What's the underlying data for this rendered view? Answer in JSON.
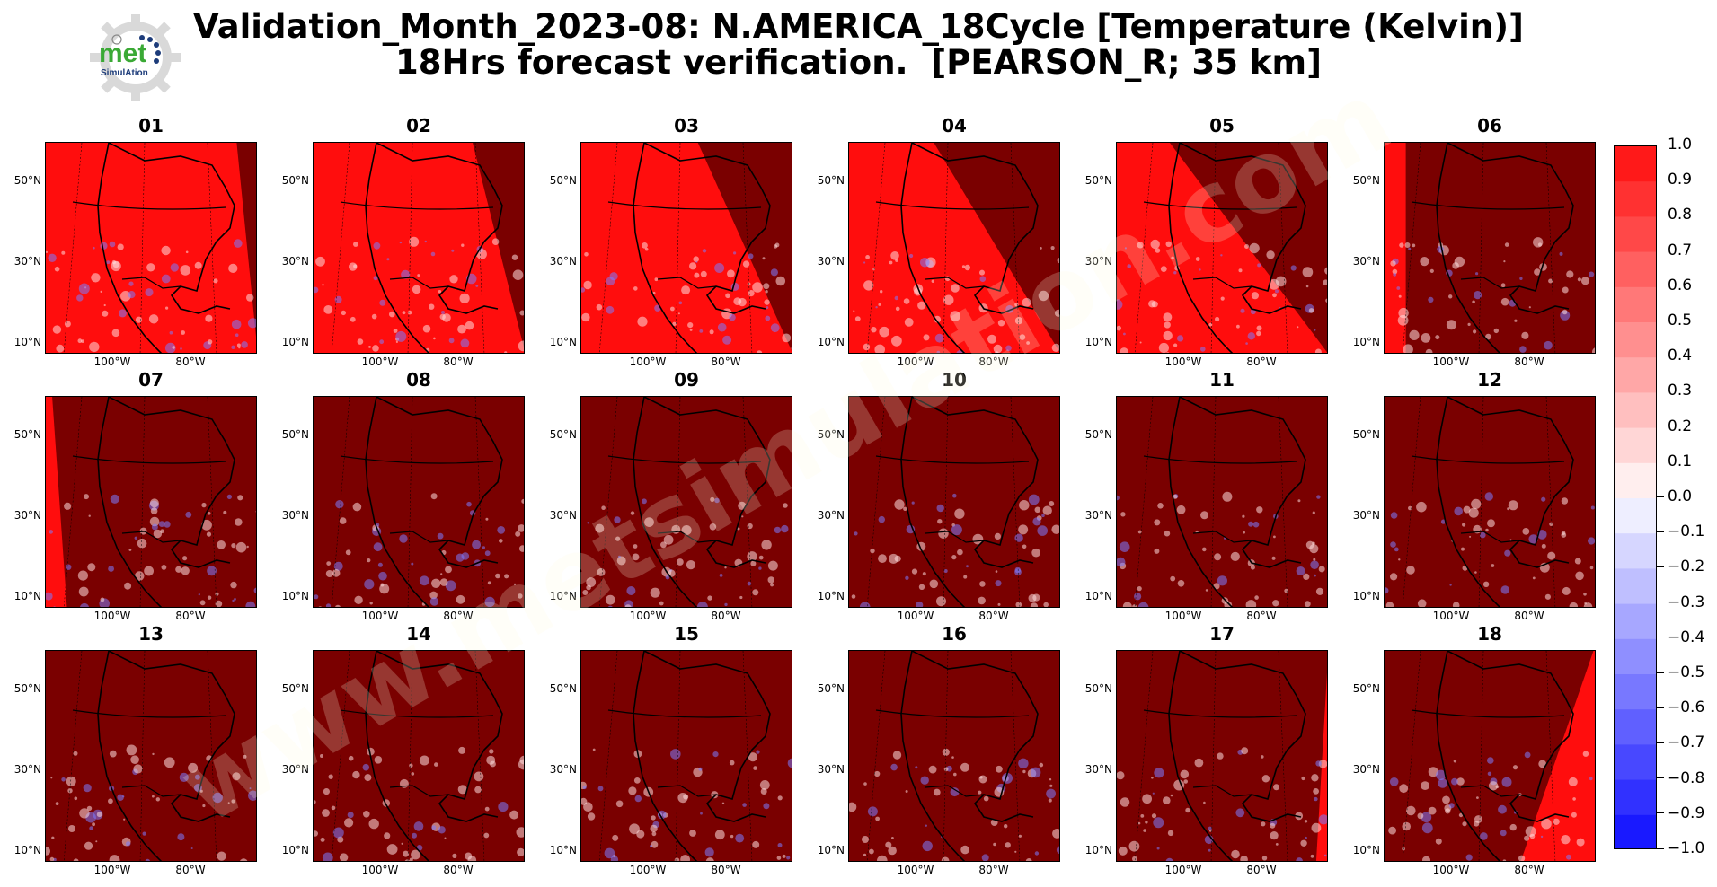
{
  "title": {
    "line1": "Validation_Month_2023-08: N.AMERICA_18Cycle [Temperature (Kelvin)]",
    "line2": "18Hrs forecast verification.  [PEARSON_R; 35 km]"
  },
  "logo": {
    "text": "met",
    "subtext": "SimulAtion"
  },
  "watermark": {
    "text": "www.metsimulation.com"
  },
  "axis": {
    "lat_labels": [
      "50°N",
      "30°N",
      "10°N"
    ],
    "lon_labels": [
      "100°W",
      "80°W"
    ]
  },
  "panels": [
    {
      "label": "01",
      "dark_side": "right",
      "sweep_fraction": 0.1
    },
    {
      "label": "02",
      "dark_side": "right",
      "sweep_fraction": 0.25
    },
    {
      "label": "03",
      "dark_side": "right",
      "sweep_fraction": 0.45
    },
    {
      "label": "04",
      "dark_side": "right",
      "sweep_fraction": 0.6
    },
    {
      "label": "05",
      "dark_side": "right",
      "sweep_fraction": 0.75
    },
    {
      "label": "06",
      "dark_side": "right",
      "sweep_fraction": 0.9
    },
    {
      "label": "07",
      "dark_side": "right",
      "sweep_fraction": 0.97
    },
    {
      "label": "08",
      "dark_side": "all",
      "sweep_fraction": 1.0
    },
    {
      "label": "09",
      "dark_side": "all",
      "sweep_fraction": 1.0
    },
    {
      "label": "10",
      "dark_side": "all",
      "sweep_fraction": 1.0
    },
    {
      "label": "11",
      "dark_side": "all",
      "sweep_fraction": 1.0
    },
    {
      "label": "12",
      "dark_side": "all",
      "sweep_fraction": 1.0
    },
    {
      "label": "13",
      "dark_side": "all",
      "sweep_fraction": 1.0
    },
    {
      "label": "14",
      "dark_side": "all",
      "sweep_fraction": 1.0
    },
    {
      "label": "15",
      "dark_side": "all",
      "sweep_fraction": 1.0
    },
    {
      "label": "16",
      "dark_side": "all",
      "sweep_fraction": 1.0
    },
    {
      "label": "17",
      "dark_side": "left",
      "sweep_fraction": 0.05
    },
    {
      "label": "18",
      "dark_side": "left",
      "sweep_fraction": 0.3
    }
  ],
  "colorbar": {
    "min": -1.0,
    "max": 1.0,
    "ticks": [
      "1.0",
      "0.9",
      "0.8",
      "0.7",
      "0.6",
      "0.5",
      "0.4",
      "0.3",
      "0.2",
      "0.1",
      "0.0",
      "−0.1",
      "−0.2",
      "−0.3",
      "−0.4",
      "−0.5",
      "−0.6",
      "−0.7",
      "−0.8",
      "−0.9",
      "−1.0"
    ],
    "colors": {
      "high": "#ff0d0d",
      "mid": "#ffffff",
      "low": "#0d0dff",
      "night": "#7a0000"
    }
  }
}
